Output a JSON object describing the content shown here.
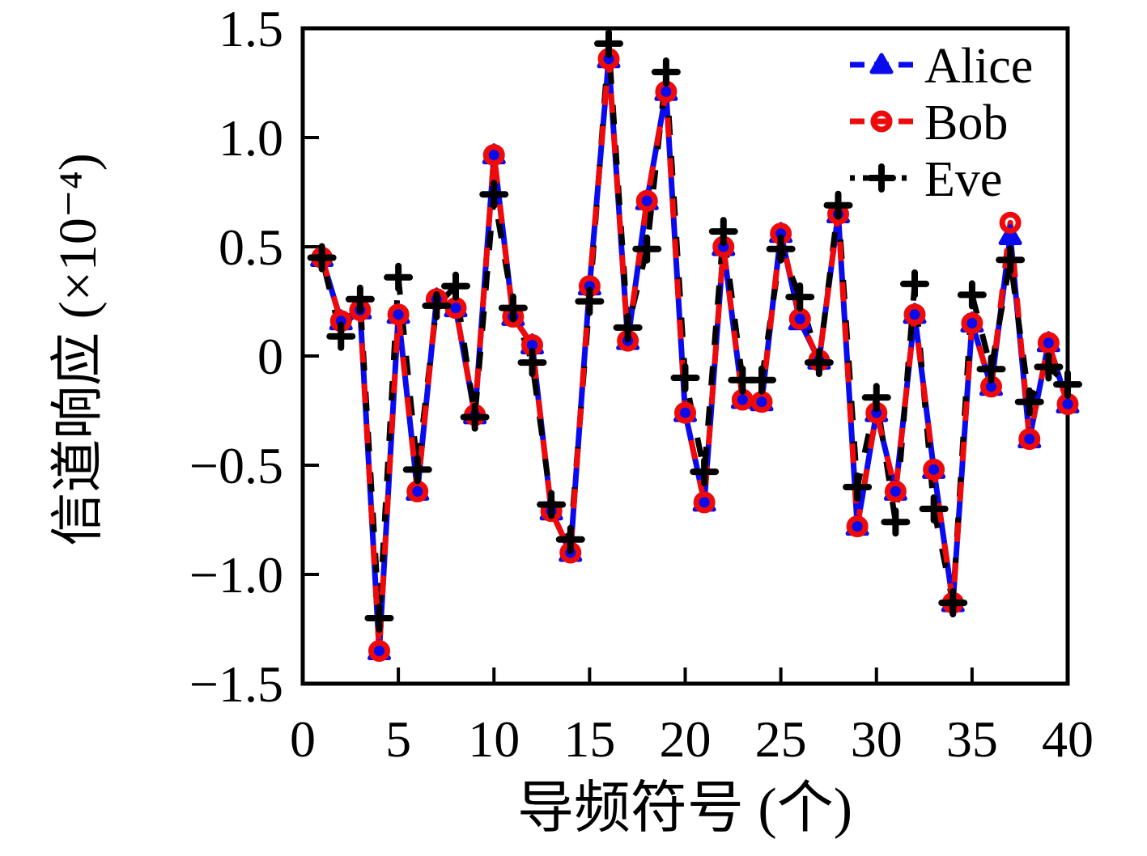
{
  "figure": {
    "background": "#ffffff",
    "accent_colors": {
      "alice": "#0a0aee",
      "bob": "#ee0a0a",
      "eve": "#000000"
    }
  },
  "chart_data": {
    "type": "line",
    "title": "",
    "xlabel": "导频符号 (个)",
    "ylabel": "信道响应 (×10⁻⁴)",
    "xlim": [
      0,
      40
    ],
    "ylim": [
      -1.5,
      1.5
    ],
    "xticks": [
      0,
      5,
      10,
      15,
      20,
      25,
      30,
      35,
      40
    ],
    "yticks": [
      1.5,
      1.0,
      0.5,
      0,
      -0.5,
      -1.0,
      -1.5
    ],
    "ytick_labels": [
      "1.5",
      "1.0",
      "0.5",
      "0",
      "−0.5",
      "−1.0",
      "−1.5"
    ],
    "grid": false,
    "legend_position": "top-right",
    "x": [
      1,
      2,
      3,
      4,
      5,
      6,
      7,
      8,
      9,
      10,
      11,
      12,
      13,
      14,
      15,
      16,
      17,
      18,
      19,
      20,
      21,
      22,
      23,
      24,
      25,
      26,
      27,
      28,
      29,
      30,
      31,
      32,
      33,
      34,
      35,
      36,
      37,
      38,
      39,
      40
    ],
    "series": [
      {
        "name": "Alice",
        "color": "#0a0aee",
        "marker": "triangle-filled",
        "line": "dashed",
        "values": [
          0.45,
          0.16,
          0.21,
          -1.35,
          0.19,
          -0.62,
          0.26,
          0.22,
          -0.27,
          0.92,
          0.18,
          0.05,
          -0.71,
          -0.9,
          0.32,
          1.36,
          0.07,
          0.71,
          1.21,
          -0.26,
          -0.67,
          0.5,
          -0.2,
          -0.21,
          0.56,
          0.16,
          -0.02,
          0.65,
          -0.78,
          -0.26,
          -0.62,
          0.19,
          -0.52,
          -1.13,
          0.15,
          -0.14,
          0.55,
          -0.38,
          0.06,
          -0.22
        ]
      },
      {
        "name": "Bob",
        "color": "#ee0a0a",
        "marker": "circle-open",
        "line": "dashed",
        "values": [
          0.45,
          0.16,
          0.21,
          -1.35,
          0.19,
          -0.62,
          0.26,
          0.22,
          -0.27,
          0.92,
          0.18,
          0.05,
          -0.71,
          -0.9,
          0.32,
          1.36,
          0.07,
          0.71,
          1.21,
          -0.26,
          -0.67,
          0.5,
          -0.2,
          -0.21,
          0.56,
          0.17,
          -0.02,
          0.65,
          -0.78,
          -0.26,
          -0.62,
          0.19,
          -0.52,
          -1.13,
          0.15,
          -0.14,
          0.61,
          -0.38,
          0.06,
          -0.22
        ]
      },
      {
        "name": "Eve",
        "color": "#000000",
        "marker": "plus",
        "line": "dotted",
        "values": [
          0.45,
          0.09,
          0.26,
          -1.2,
          0.36,
          -0.52,
          0.23,
          0.32,
          -0.28,
          0.74,
          0.22,
          -0.03,
          -0.68,
          -0.84,
          0.25,
          1.43,
          0.13,
          0.49,
          1.3,
          -0.1,
          -0.53,
          0.57,
          -0.11,
          -0.11,
          0.49,
          0.27,
          -0.03,
          0.69,
          -0.6,
          -0.19,
          -0.76,
          0.33,
          -0.7,
          -1.13,
          0.28,
          -0.06,
          0.44,
          -0.21,
          -0.05,
          -0.13
        ]
      }
    ]
  }
}
